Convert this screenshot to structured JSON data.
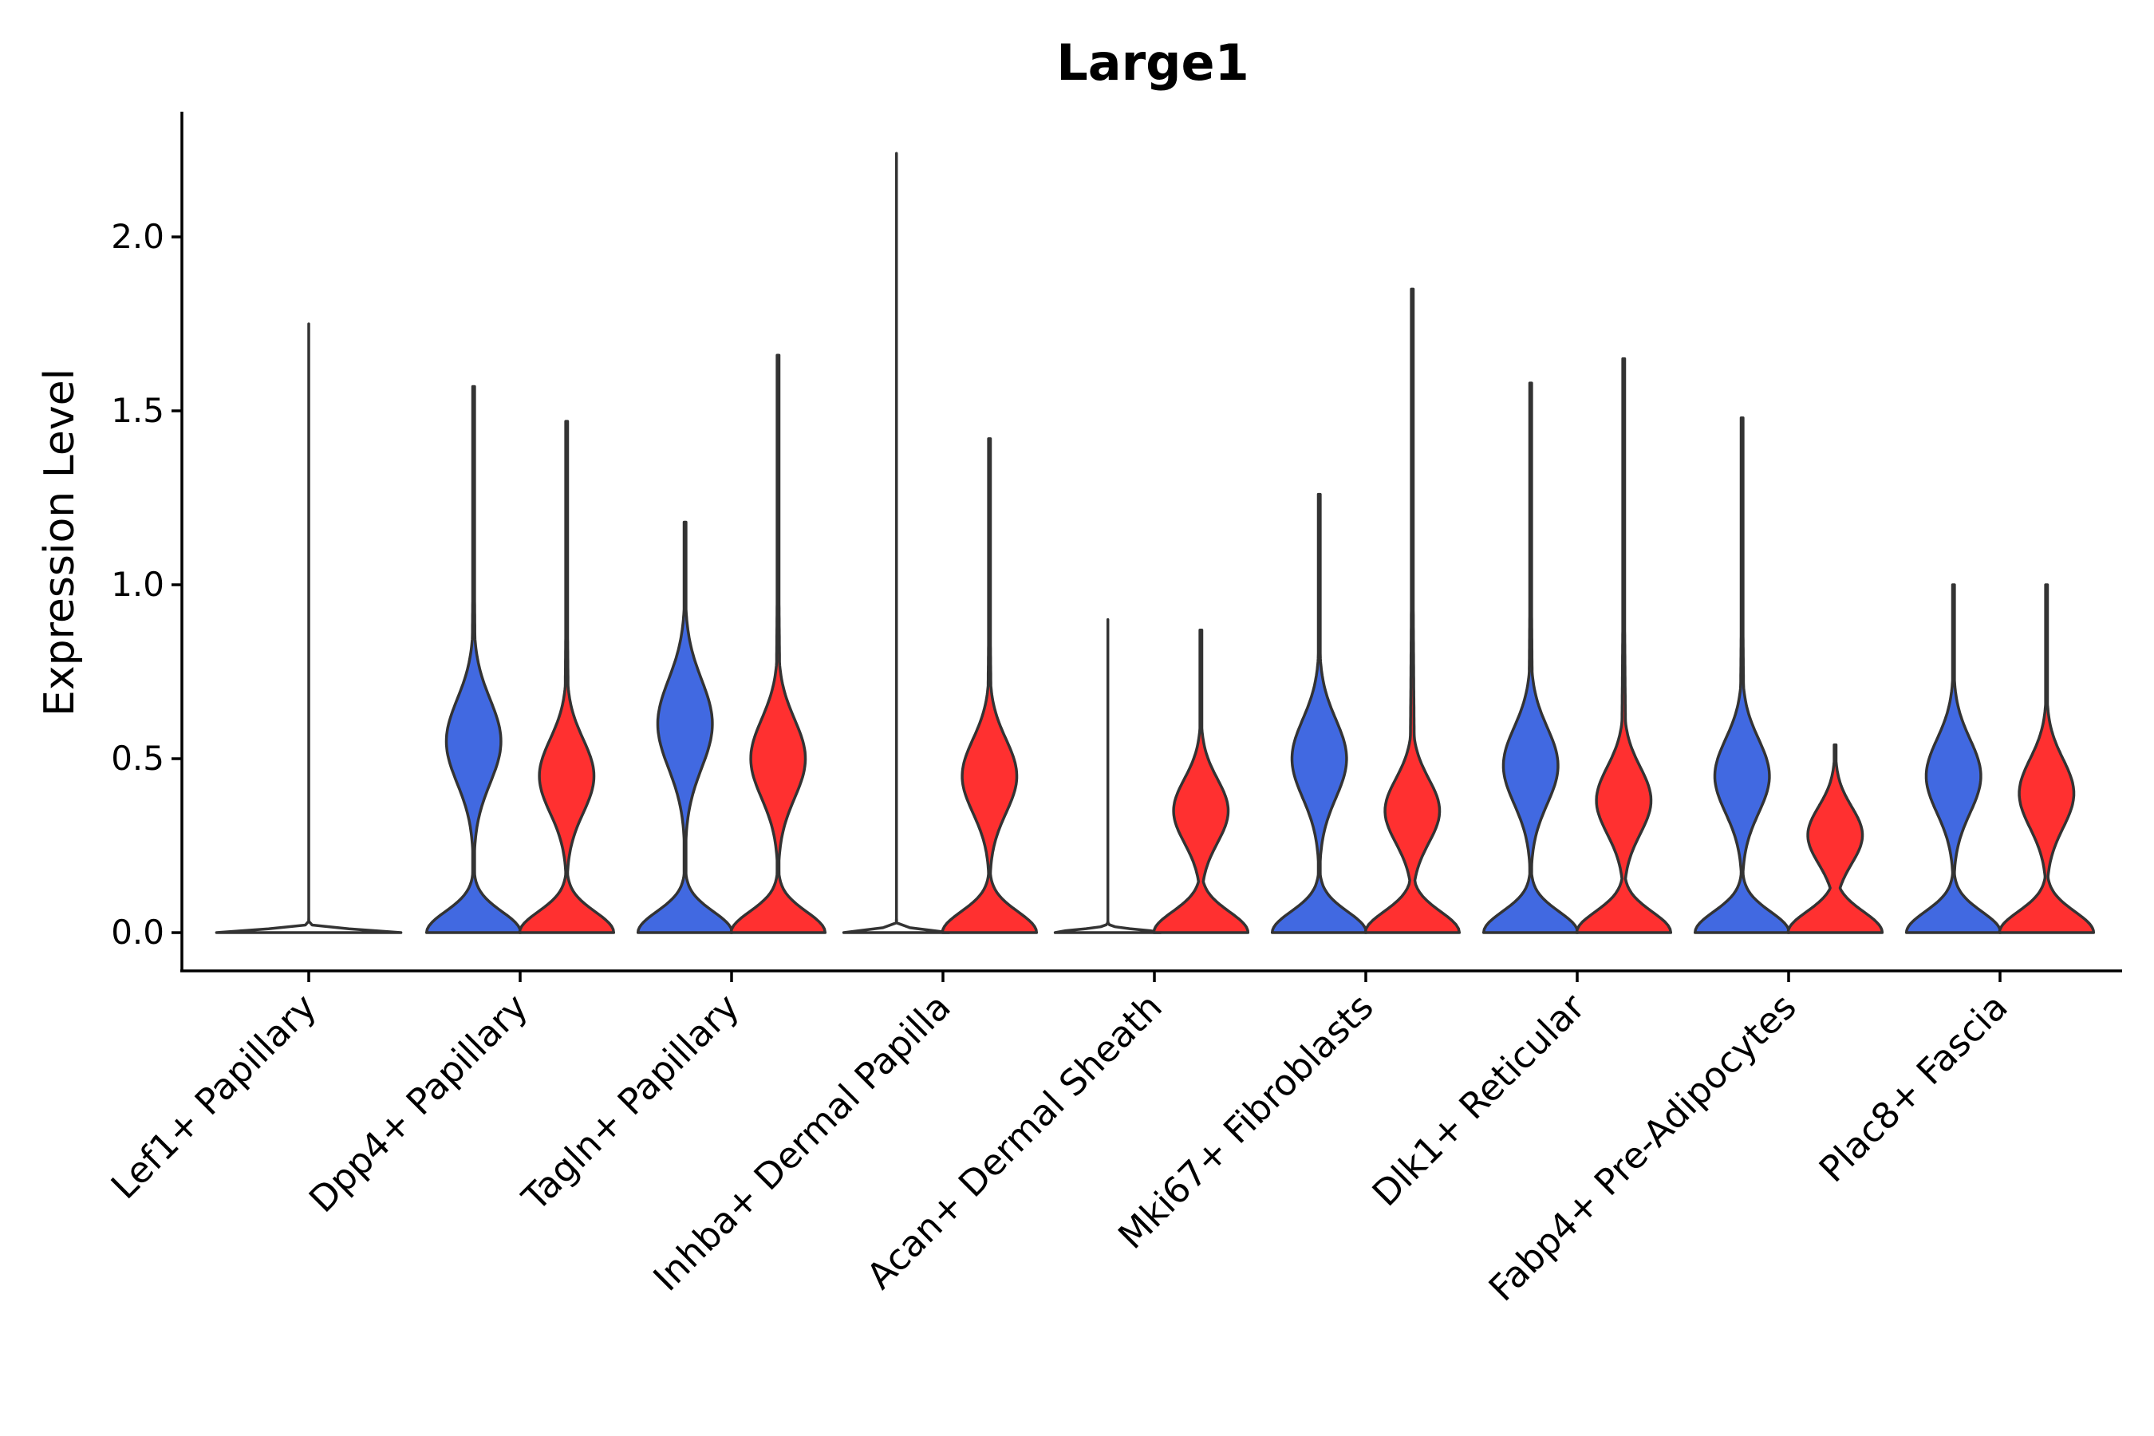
{
  "chart_data": {
    "type": "violin",
    "title": "Large1",
    "xlabel": "",
    "ylabel": "Expression Level",
    "ylim": [
      -0.11,
      2.36
    ],
    "yticks": [
      "0.0",
      "0.5",
      "1.0",
      "1.5",
      "2.0"
    ],
    "ytick_values": [
      0,
      0.5,
      1.0,
      1.5,
      2.0
    ],
    "grid": false,
    "legend": "none",
    "colors": {
      "group1": "#4169E1",
      "group2": "#FF3030",
      "outline": "#333333"
    },
    "categories": [
      "Lef1+ Papillary",
      "Dpp4+ Papillary",
      "Tagln+ Papillary",
      "Inhba+ Dermal Papilla",
      "Acan+ Dermal Sheath",
      "Mki67+ Fibroblasts",
      "Dlk1+ Reticular",
      "Fabp4+ Pre-Adipocytes",
      "Plac8+ Fascia"
    ],
    "violins": [
      {
        "category": 0,
        "group": "group1",
        "offset": 0,
        "max": 1.75,
        "profile": "flat"
      },
      {
        "category": 1,
        "group": "group1",
        "offset": -0.22,
        "max": 1.57,
        "profile": "bimodal",
        "upper_mode": 0.55
      },
      {
        "category": 1,
        "group": "group2",
        "offset": 0.22,
        "max": 1.47,
        "profile": "bimodal",
        "upper_mode": 0.45
      },
      {
        "category": 2,
        "group": "group1",
        "offset": -0.22,
        "max": 1.18,
        "profile": "bimodal",
        "upper_mode": 0.6
      },
      {
        "category": 2,
        "group": "group2",
        "offset": 0.22,
        "max": 1.66,
        "profile": "bimodal",
        "upper_mode": 0.5
      },
      {
        "category": 3,
        "group": "group1",
        "offset": -0.22,
        "max": 2.24,
        "profile": "flat"
      },
      {
        "category": 3,
        "group": "group2",
        "offset": 0.22,
        "max": 1.42,
        "profile": "bimodal",
        "upper_mode": 0.45
      },
      {
        "category": 4,
        "group": "group1",
        "offset": -0.22,
        "max": 0.9,
        "profile": "flat"
      },
      {
        "category": 4,
        "group": "group2",
        "offset": 0.22,
        "max": 0.87,
        "profile": "bimodal",
        "upper_mode": 0.35
      },
      {
        "category": 5,
        "group": "group1",
        "offset": -0.22,
        "max": 1.26,
        "profile": "bimodal",
        "upper_mode": 0.5
      },
      {
        "category": 5,
        "group": "group2",
        "offset": 0.22,
        "max": 1.85,
        "profile": "bimodal",
        "upper_mode": 0.35
      },
      {
        "category": 6,
        "group": "group1",
        "offset": -0.22,
        "max": 1.58,
        "profile": "bimodal",
        "upper_mode": 0.48
      },
      {
        "category": 6,
        "group": "group2",
        "offset": 0.22,
        "max": 1.65,
        "profile": "bimodal",
        "upper_mode": 0.38
      },
      {
        "category": 7,
        "group": "group1",
        "offset": -0.22,
        "max": 1.48,
        "profile": "bimodal",
        "upper_mode": 0.45
      },
      {
        "category": 7,
        "group": "group2",
        "offset": 0.22,
        "max": 0.54,
        "profile": "bimodal",
        "upper_mode": 0.28
      },
      {
        "category": 8,
        "group": "group1",
        "offset": -0.22,
        "max": 1.0,
        "profile": "bimodal",
        "upper_mode": 0.45
      },
      {
        "category": 8,
        "group": "group2",
        "offset": 0.22,
        "max": 1.0,
        "profile": "bimodal",
        "upper_mode": 0.4
      }
    ]
  }
}
